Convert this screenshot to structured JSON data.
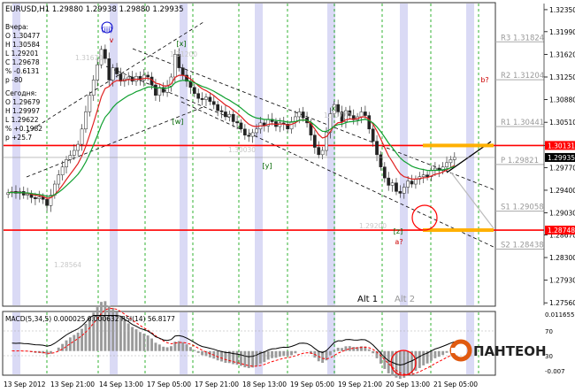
{
  "chart_data": {
    "type": "candlestick",
    "symbol_header": "EURUSD,H1  1.29880  1.29938  1.29880  1.29935",
    "info_yesterday": [
      "Вчера:",
      "O 1.30477",
      "H 1.30584",
      "L 1.29201",
      "C 1.29678",
      "% -0.6131",
      "p -80"
    ],
    "info_today": [
      "Сегодня:",
      "O 1.29679",
      "H 1.29997",
      "L 1.29622",
      "% +0.1982",
      "p +25.7"
    ],
    "price_axis": {
      "ticks": [
        1.3235,
        1.3199,
        1.3162,
        1.3125,
        1.3088,
        1.3051,
        1.3013,
        1.2977,
        1.294,
        1.2903,
        1.2867,
        1.283,
        1.2793,
        1.2756
      ],
      "tick_labels": [
        "1.32350",
        "1.31990",
        "1.31620",
        "1.31250",
        "1.30880",
        "1.30510",
        "1.30131",
        "1.29770",
        "1.29400",
        "1.29030",
        "1.28670",
        "1.28300",
        "1.27930",
        "1.27560"
      ],
      "range": [
        1.2752,
        1.3245
      ]
    },
    "current_price_label": "1.29935",
    "current_price": 1.29935,
    "levels": [
      {
        "label": "R3 1.31824",
        "value": 1.31824
      },
      {
        "label": "R2 1.31204",
        "value": 1.31204
      },
      {
        "label": "R1 1.30441",
        "value": 1.30441
      },
      {
        "label": "P 1.29821",
        "value": 1.29821
      },
      {
        "label": "S1 1.29058",
        "value": 1.29058
      },
      {
        "label": "S2 1.28438",
        "value": 1.28438
      }
    ],
    "red_levels": [
      {
        "label": "1.30131",
        "value": 1.30131
      },
      {
        "label": "1.28748",
        "value": 1.28748
      }
    ],
    "x_labels": [
      "13 Sep 2012",
      "13 Sep 21:00",
      "14 Sep 13:00",
      "17 Sep 05:00",
      "17 Sep 21:00",
      "18 Sep 13:00",
      "19 Sep 05:00",
      "19 Sep 21:00",
      "20 Sep 13:00",
      "21 Sep 05:00"
    ],
    "wave_labels": [
      "(iii)",
      "v",
      "[x]",
      "[w]",
      "[y]",
      "x",
      "[z]",
      "a?",
      "b?"
    ],
    "faded_labels": [
      "1.31670",
      "1.31200",
      "1.30770",
      "1.30030",
      "1.29200",
      "1.28564"
    ],
    "scenario_labels": [
      "Alt 1",
      "Alt 2"
    ],
    "closes": [
      1.2936,
      1.2938,
      1.2935,
      1.2938,
      1.2932,
      1.2934,
      1.2928,
      1.2926,
      1.2929,
      1.2925,
      1.2915,
      1.2932,
      1.295,
      1.2965,
      1.2978,
      1.299,
      1.2997,
      1.3005,
      1.3015,
      1.304,
      1.3068,
      1.3095,
      1.312,
      1.3145,
      1.317,
      1.3155,
      1.312,
      1.314,
      1.313,
      1.3118,
      1.3122,
      1.3125,
      1.3118,
      1.3126,
      1.312,
      1.3128,
      1.3125,
      1.3112,
      1.3095,
      1.3108,
      1.31,
      1.311,
      1.3125,
      1.3162,
      1.314,
      1.3128,
      1.3118,
      1.3108,
      1.3098,
      1.309,
      1.3088,
      1.3092,
      1.3085,
      1.308,
      1.307,
      1.3068,
      1.306,
      1.3064,
      1.3052,
      1.305,
      1.304,
      1.303,
      1.3028,
      1.3034,
      1.304,
      1.305,
      1.3045,
      1.3056,
      1.3052,
      1.3044,
      1.305,
      1.3048,
      1.304,
      1.3052,
      1.306,
      1.3068,
      1.3058,
      1.305,
      1.303,
      1.301,
      1.2998,
      1.3005,
      1.3035,
      1.3065,
      1.308,
      1.3068,
      1.3052,
      1.307,
      1.3062,
      1.3055,
      1.306,
      1.3068,
      1.3062,
      1.304,
      1.302,
      1.2998,
      1.2978,
      1.296,
      1.2948,
      1.2952,
      1.2938,
      1.2935,
      1.2945,
      1.2955,
      1.295,
      1.2958,
      1.2962,
      1.2965,
      1.2962,
      1.2972,
      1.2976,
      1.2972,
      1.2978,
      1.2985,
      1.299,
      1.2994
    ],
    "macd_label": "MACD(5,34,5) 0.000025 0.000632  RSI(14) 56.8177",
    "macd_axis_labels": [
      "0.011655",
      "70",
      "30",
      "-0.007"
    ],
    "macd_range": [
      -0.007,
      0.011655
    ],
    "rsi_levels": [
      70,
      30
    ]
  },
  "brand": {
    "name": "ПАНТЕОН",
    "color": "#e05a10"
  },
  "colors": {
    "up_candle": "#2e7d2e",
    "down_candle": "#1a1a1a",
    "red_ma": "#e02020",
    "green_ma": "#10a030",
    "level_red": "#ff0000",
    "band_gold": "#ffb000",
    "grid_green": "#00a000",
    "session_band": "#dadaf5"
  }
}
